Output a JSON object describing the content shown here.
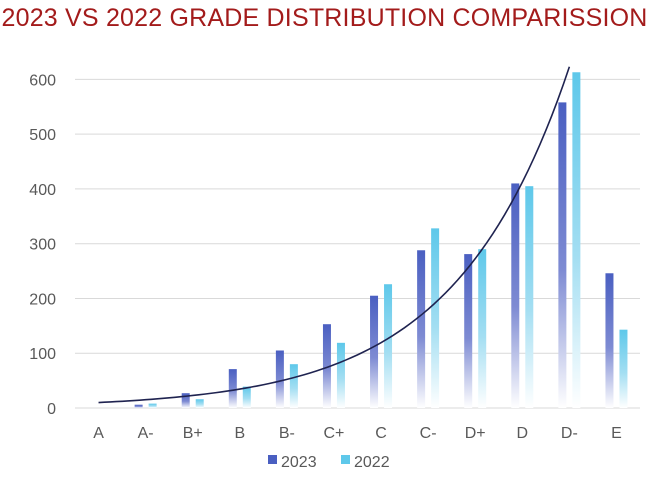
{
  "colors": {
    "title": "#a31b1b",
    "series_2023": "#4a5fc1",
    "series_2022": "#5ec8ea",
    "curve": "#1f2350",
    "grid": "#d9d9d9",
    "axis_text": "#595959"
  },
  "chart_data": {
    "type": "bar",
    "title": "2023 VS 2022 GRADE DISTRIBUTION COMPARISSION",
    "xlabel": "",
    "ylabel": "",
    "categories": [
      "A",
      "A-",
      "B+",
      "B",
      "B-",
      "C+",
      "C",
      "C-",
      "D+",
      "D",
      "D-",
      "E"
    ],
    "series": [
      {
        "name": "2023",
        "values": [
          0,
          6,
          27,
          71,
          105,
          153,
          205,
          288,
          281,
          410,
          558,
          246
        ]
      },
      {
        "name": "2022",
        "values": [
          0,
          8,
          16,
          39,
          80,
          119,
          226,
          328,
          290,
          405,
          613,
          143
        ]
      }
    ],
    "trend_curve": {
      "type": "exponential",
      "start_category": "A",
      "start_value": 10,
      "end_category": "D-",
      "end_value": 623
    },
    "ylim": [
      0,
      650
    ],
    "yticks": [
      0,
      100,
      200,
      300,
      400,
      500,
      600
    ],
    "grid": true,
    "legend_position": "bottom"
  }
}
